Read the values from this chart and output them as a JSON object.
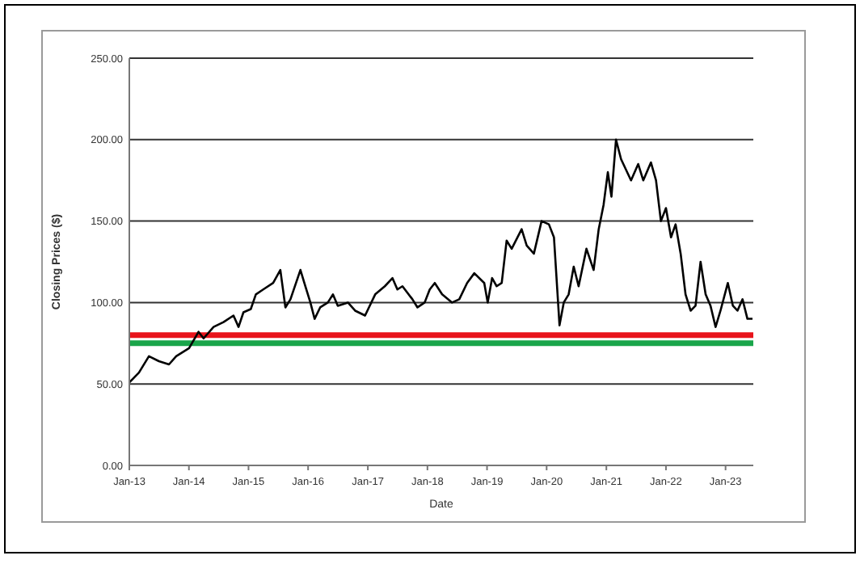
{
  "chart_data": {
    "type": "line",
    "xlabel": "Date",
    "ylabel": "Closing Prices ($)",
    "x": [
      "2013-01-02",
      "2013-03-01",
      "2013-05-01",
      "2013-07-01",
      "2013-09-01",
      "2013-10-15",
      "2014-01-02",
      "2014-03-01",
      "2014-04-01",
      "2014-06-01",
      "2014-08-01",
      "2014-10-01",
      "2014-11-01",
      "2014-12-01",
      "2015-01-15",
      "2015-02-15",
      "2015-04-01",
      "2015-06-01",
      "2015-07-15",
      "2015-08-15",
      "2015-09-15",
      "2015-11-15",
      "2015-12-15",
      "2016-01-15",
      "2016-02-10",
      "2016-03-15",
      "2016-05-01",
      "2016-06-01",
      "2016-07-01",
      "2016-09-01",
      "2016-10-15",
      "2016-12-15",
      "2017-02-15",
      "2017-04-15",
      "2017-06-01",
      "2017-07-01",
      "2017-08-01",
      "2017-10-01",
      "2017-11-01",
      "2017-12-15",
      "2018-01-15",
      "2018-02-15",
      "2018-04-01",
      "2018-06-01",
      "2018-07-15",
      "2018-09-01",
      "2018-10-15",
      "2018-12-15",
      "2019-01-05",
      "2019-02-01",
      "2019-03-01",
      "2019-04-01",
      "2019-05-01",
      "2019-06-01",
      "2019-08-01",
      "2019-09-01",
      "2019-10-15",
      "2019-12-01",
      "2020-01-15",
      "2020-02-15",
      "2020-03-20",
      "2020-04-15",
      "2020-05-15",
      "2020-06-15",
      "2020-07-15",
      "2020-09-01",
      "2020-10-15",
      "2020-11-15",
      "2020-12-15",
      "2021-01-10",
      "2021-02-01",
      "2021-03-01",
      "2021-04-01",
      "2021-06-01",
      "2021-07-15",
      "2021-08-15",
      "2021-10-01",
      "2021-11-01",
      "2021-12-01",
      "2022-01-01",
      "2022-02-01",
      "2022-03-01",
      "2022-04-01",
      "2022-05-01",
      "2022-06-01",
      "2022-07-01",
      "2022-08-01",
      "2022-09-01",
      "2022-10-01",
      "2022-11-01",
      "2022-12-01",
      "2023-01-15",
      "2023-02-15",
      "2023-03-15",
      "2023-04-15",
      "2023-05-15",
      "2023-06-15"
    ],
    "series": [
      {
        "color": "#000000",
        "values": [
          51,
          57,
          67,
          64,
          62,
          67,
          72,
          82,
          78,
          85,
          88,
          92,
          85,
          94,
          96,
          105,
          108,
          112,
          120,
          97,
          102,
          120,
          110,
          100,
          90,
          97,
          100,
          105,
          98,
          100,
          95,
          92,
          105,
          110,
          115,
          108,
          110,
          102,
          97,
          100,
          108,
          112,
          105,
          100,
          102,
          112,
          118,
          112,
          100,
          115,
          110,
          112,
          138,
          133,
          145,
          135,
          130,
          150,
          148,
          140,
          86,
          100,
          105,
          122,
          110,
          133,
          120,
          145,
          160,
          180,
          165,
          200,
          188,
          175,
          185,
          175,
          186,
          175,
          150,
          158,
          140,
          148,
          130,
          105,
          95,
          98,
          125,
          105,
          98,
          85,
          95,
          112,
          98,
          95,
          102,
          90,
          90
        ]
      }
    ],
    "xlim": [
      "2013-01-01",
      "2023-06-20"
    ],
    "xticks": [
      {
        "value": "2013-01-01",
        "label": "Jan-13"
      },
      {
        "value": "2014-01-01",
        "label": "Jan-14"
      },
      {
        "value": "2015-01-01",
        "label": "Jan-15"
      },
      {
        "value": "2016-01-01",
        "label": "Jan-16"
      },
      {
        "value": "2017-01-01",
        "label": "Jan-17"
      },
      {
        "value": "2018-01-01",
        "label": "Jan-18"
      },
      {
        "value": "2019-01-01",
        "label": "Jan-19"
      },
      {
        "value": "2020-01-01",
        "label": "Jan-20"
      },
      {
        "value": "2021-01-01",
        "label": "Jan-21"
      },
      {
        "value": "2022-01-01",
        "label": "Jan-22"
      },
      {
        "value": "2023-01-01",
        "label": "Jan-23"
      }
    ],
    "ylim": [
      0,
      250
    ],
    "yticks": [
      {
        "value": 0,
        "label": "0.00"
      },
      {
        "value": 50,
        "label": "50.00"
      },
      {
        "value": 100,
        "label": "100.00"
      },
      {
        "value": 150,
        "label": "150.00"
      },
      {
        "value": 200,
        "label": "200.00"
      },
      {
        "value": 250,
        "label": "250.00"
      }
    ],
    "grid": "y",
    "marker": "none",
    "line_style": "solid",
    "ref_lines": [
      {
        "axis": "y",
        "value": 80,
        "color": "#e8141b"
      },
      {
        "axis": "y",
        "value": 75,
        "color": "#1aa54a"
      }
    ]
  }
}
